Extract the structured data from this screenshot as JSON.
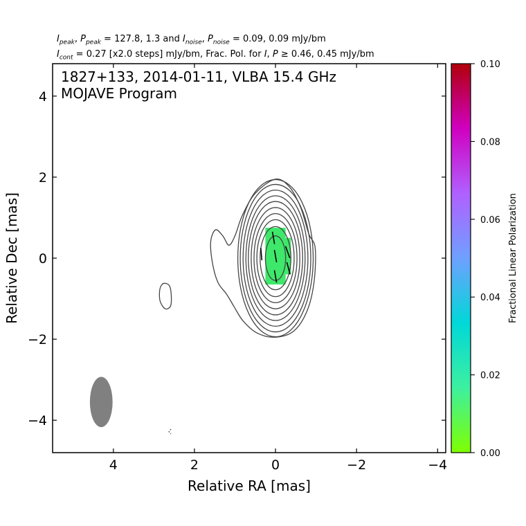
{
  "chart_data": {
    "type": "contour",
    "header": {
      "line1": {
        "i_peak": "127.8",
        "p_peak": "1.3",
        "i_noise": "0.09",
        "p_noise": "0.09",
        "unit": "mJy/bm"
      },
      "line2": {
        "i_cont": "0.27",
        "steps": "[x2.0 steps]",
        "unit": "mJy/bm",
        "frac_text": "Frac. Pol. for",
        "threshold": "0.46, 0.45 mJy/bm"
      }
    },
    "title_line1": "1827+133, 2014-01-11, VLBA 15.4 GHz",
    "title_line2": "MOJAVE Program",
    "xlabel": "Relative RA [mas]",
    "ylabel": "Relative Dec [mas]",
    "xlim": [
      5.5,
      -4.2
    ],
    "ylim": [
      -4.8,
      4.8
    ],
    "xticks": [
      "4",
      "2",
      "0",
      "−2",
      "−4"
    ],
    "xtick_values": [
      4,
      2,
      0,
      -2,
      -4
    ],
    "yticks": [
      "4",
      "2",
      "0",
      "−2",
      "−4"
    ],
    "ytick_values": [
      4,
      2,
      0,
      -2,
      -4
    ],
    "contours": {
      "center": [
        0,
        0
      ],
      "semi_axes": [
        [
          0.25,
          0.55
        ],
        [
          0.38,
          0.78
        ],
        [
          0.46,
          0.95
        ],
        [
          0.53,
          1.1
        ],
        [
          0.6,
          1.25
        ],
        [
          0.67,
          1.4
        ],
        [
          0.73,
          1.54
        ],
        [
          0.8,
          1.68
        ],
        [
          0.87,
          1.82
        ],
        [
          0.93,
          1.94
        ]
      ],
      "outer_contour": [
        [
          0.0,
          1.95
        ],
        [
          -0.35,
          1.75
        ],
        [
          -0.62,
          1.25
        ],
        [
          -0.82,
          0.6
        ],
        [
          -0.98,
          0.25
        ],
        [
          -0.95,
          -0.6
        ],
        [
          -0.78,
          -1.3
        ],
        [
          -0.45,
          -1.8
        ],
        [
          0.0,
          -1.95
        ],
        [
          0.45,
          -1.85
        ],
        [
          0.8,
          -1.55
        ],
        [
          1.02,
          -1.2
        ],
        [
          1.2,
          -0.9
        ],
        [
          1.42,
          -0.6
        ],
        [
          1.55,
          -0.15
        ],
        [
          1.6,
          0.4
        ],
        [
          1.48,
          0.7
        ],
        [
          1.3,
          0.55
        ],
        [
          1.15,
          0.32
        ],
        [
          1.0,
          0.55
        ],
        [
          0.82,
          1.05
        ],
        [
          0.5,
          1.6
        ]
      ],
      "blob_contour": [
        [
          2.75,
          -0.62
        ],
        [
          2.6,
          -0.72
        ],
        [
          2.58,
          -1.15
        ],
        [
          2.72,
          -1.25
        ],
        [
          2.85,
          -1.05
        ],
        [
          2.85,
          -0.75
        ]
      ],
      "dashed_contour": [
        [
          2.58,
          -4.22
        ],
        [
          2.63,
          -4.28
        ],
        [
          2.58,
          -4.34
        ]
      ]
    },
    "fractional_polarization_pixels": {
      "value": 0.013,
      "cells": [
        {
          "x0": 0.25,
          "x1": -0.25,
          "y0": -0.65,
          "y1": 0.75
        },
        {
          "x0": -0.05,
          "x1": -0.38,
          "y0": -0.4,
          "y1": 0.5
        }
      ]
    },
    "evpa_ticks": [
      {
        "x": 0.35,
        "y": 0.1,
        "angle_deg": 95
      },
      {
        "x": 0.05,
        "y": 0.5,
        "angle_deg": 100
      },
      {
        "x": 0.0,
        "y": 0.05,
        "angle_deg": 100
      },
      {
        "x": 0.0,
        "y": -0.45,
        "angle_deg": 100
      },
      {
        "x": -0.3,
        "y": 0.15,
        "angle_deg": 110
      },
      {
        "x": -0.32,
        "y": -0.25,
        "angle_deg": 105
      }
    ],
    "beam": {
      "x": 4.3,
      "y": -3.55,
      "semi_minor": 0.28,
      "semi_major": 0.62,
      "color": "#808080"
    },
    "colorbar": {
      "label": "Fractional Linear Polarization",
      "range": [
        0.0,
        0.1
      ],
      "ticks": [
        "0.00",
        "0.02",
        "0.04",
        "0.06",
        "0.08",
        "0.10"
      ],
      "tick_values": [
        0.0,
        0.02,
        0.04,
        0.06,
        0.08,
        0.1
      ],
      "stops": [
        "#7fff00",
        "#3df0a0",
        "#00d8d8",
        "#6fa0ff",
        "#b060ff",
        "#d000c0",
        "#b0000a"
      ]
    },
    "contour_color": "#444444",
    "pixel_color": "#3ee86a"
  }
}
